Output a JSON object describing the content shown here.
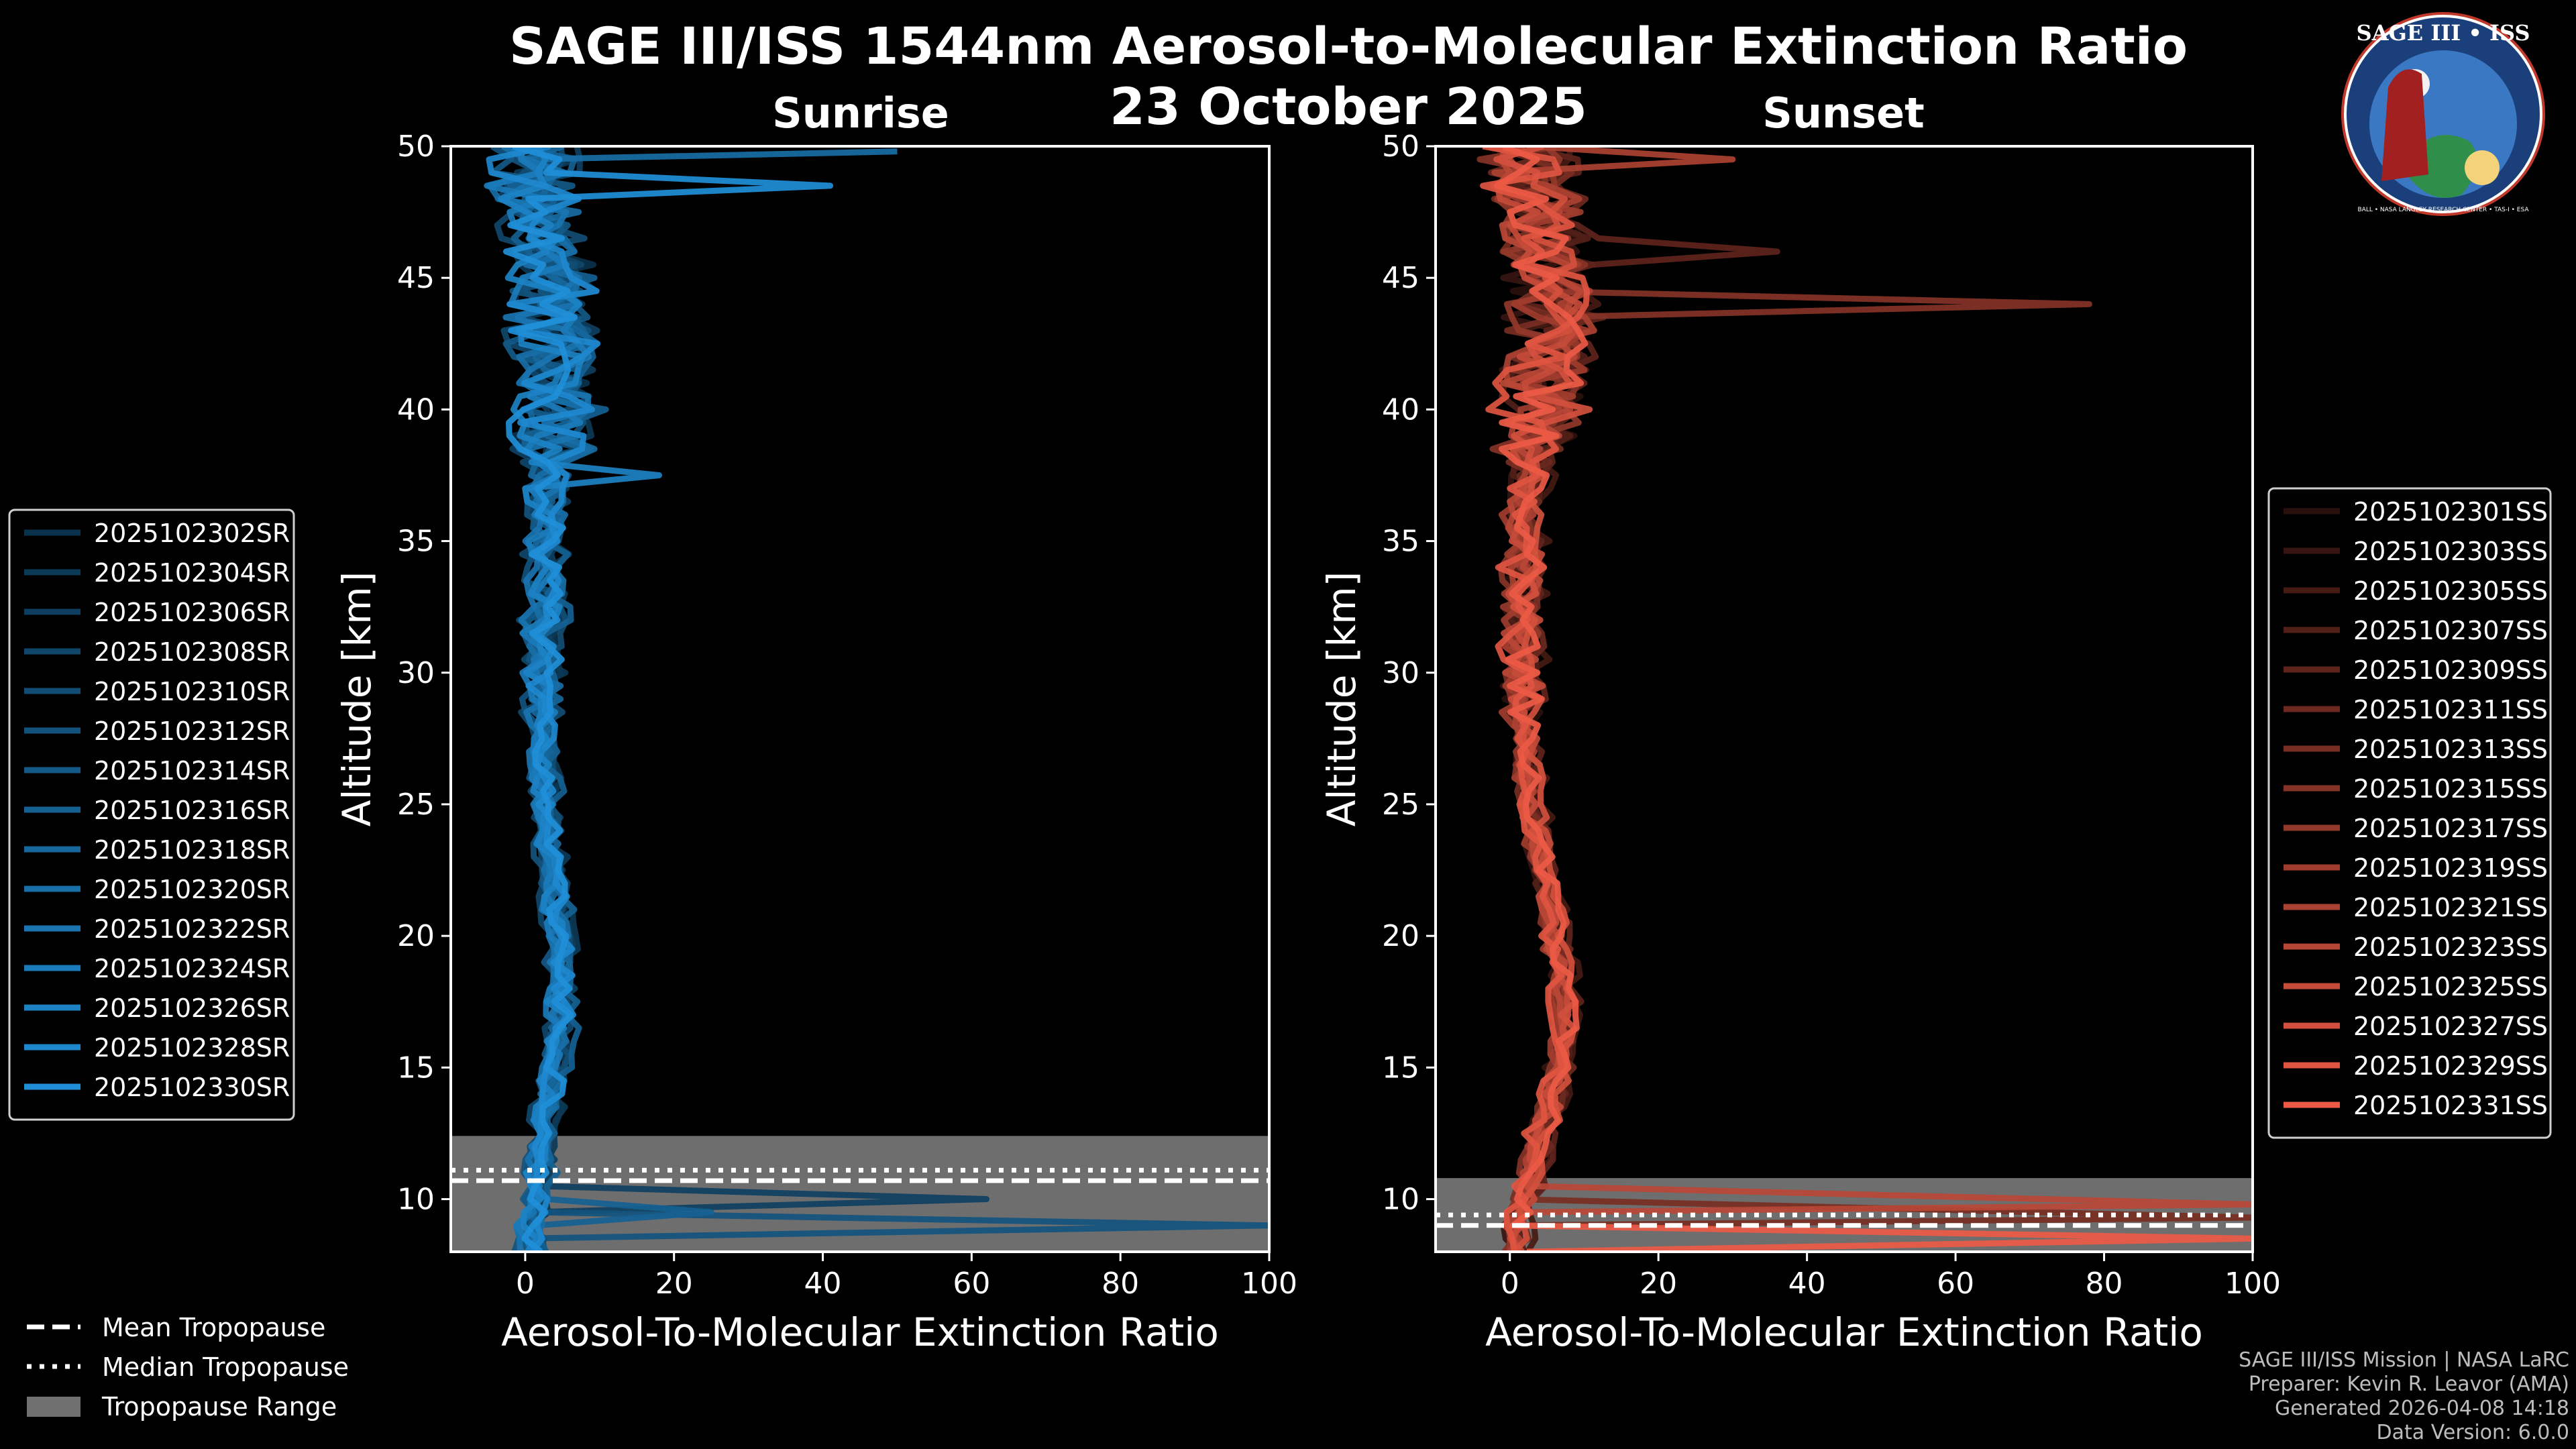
{
  "title_line1": "SAGE III/ISS 1544nm Aerosol-to-Molecular Extinction Ratio",
  "title_line2": "23 October 2025",
  "badge": {
    "title": "SAGE III • ISS",
    "ring_text": "BALL • NASA LANGLEY RESEARCH CENTER • TAS-I • ESA"
  },
  "credits": [
    "SAGE III/ISS Mission | NASA LaRC",
    "Preparer: Kevin R. Leavor (AMA)",
    "Generated 2026-04-08 14:18",
    "Data Version: 6.0.0"
  ],
  "tropo_legend": {
    "mean": "Mean Tropopause",
    "median": "Median Tropopause",
    "range": "Tropopause Range"
  },
  "chart_data": [
    {
      "type": "line",
      "panel": "sunrise",
      "subtitle": "Sunrise",
      "xlabel": "Aerosol-To-Molecular Extinction Ratio",
      "ylabel": "Altitude [km]",
      "xlim": [
        -10,
        100
      ],
      "ylim": [
        8,
        50
      ],
      "xticks": [
        0,
        20,
        40,
        60,
        80,
        100
      ],
      "yticks": [
        10,
        15,
        20,
        25,
        30,
        35,
        40,
        45,
        50
      ],
      "base_color": "#1f8fd8",
      "tropopause": {
        "mean": 10.7,
        "median": 11.1,
        "range": [
          8.0,
          12.4
        ]
      },
      "profile_shape": {
        "altitudes": [
          8,
          9,
          10,
          11,
          12,
          13,
          15,
          17,
          19,
          21,
          23,
          25,
          27,
          29,
          31,
          33,
          35,
          37,
          39,
          41,
          43,
          45,
          47,
          49,
          50
        ],
        "ratio": [
          1,
          1,
          1.5,
          2,
          2.5,
          3,
          4,
          5,
          5,
          4.5,
          3.5,
          3,
          2.5,
          2.5,
          2.5,
          3,
          3,
          3,
          3.5,
          4,
          4,
          3.5,
          2,
          1,
          1
        ]
      },
      "spikes": [
        {
          "series": "2025102312SR",
          "alt": 9.0,
          "x": 100
        },
        {
          "series": "2025102306SR",
          "alt": 10.0,
          "x": 62
        },
        {
          "series": "2025102316SR",
          "alt": 9.5,
          "x": 25
        },
        {
          "series": "2025102326SR",
          "alt": 37.5,
          "x": 18
        },
        {
          "series": "2025102330SR",
          "alt": 48.5,
          "x": 41
        },
        {
          "series": "2025102320SR",
          "alt": 49.8,
          "x": 50
        }
      ],
      "legend": [
        "2025102302SR",
        "2025102304SR",
        "2025102306SR",
        "2025102308SR",
        "2025102310SR",
        "2025102312SR",
        "2025102314SR",
        "2025102316SR",
        "2025102318SR",
        "2025102320SR",
        "2025102322SR",
        "2025102324SR",
        "2025102326SR",
        "2025102328SR",
        "2025102330SR"
      ]
    },
    {
      "type": "line",
      "panel": "sunset",
      "subtitle": "Sunset",
      "xlabel": "Aerosol-To-Molecular Extinction Ratio",
      "ylabel": "Altitude [km]",
      "xlim": [
        -10,
        100
      ],
      "ylim": [
        8,
        50
      ],
      "xticks": [
        0,
        20,
        40,
        60,
        80,
        100
      ],
      "yticks": [
        10,
        15,
        20,
        25,
        30,
        35,
        40,
        45,
        50
      ],
      "base_color": "#ec5a45",
      "tropopause": {
        "mean": 9.0,
        "median": 9.4,
        "range": [
          8.0,
          10.8
        ]
      },
      "profile_shape": {
        "altitudes": [
          8,
          9,
          10,
          11,
          12,
          13,
          15,
          17,
          19,
          21,
          23,
          25,
          27,
          29,
          31,
          33,
          35,
          37,
          39,
          41,
          43,
          45,
          47,
          49,
          50
        ],
        "ratio": [
          1,
          1,
          2,
          3,
          4,
          5,
          7,
          7.5,
          7,
          5.5,
          4.5,
          3,
          2.5,
          2,
          2,
          2,
          2,
          2.5,
          3.5,
          5,
          6,
          6,
          5,
          3,
          2
        ]
      },
      "spikes": [
        {
          "series": "2025102315SS",
          "alt": 44.0,
          "x": 78
        },
        {
          "series": "2025102309SS",
          "alt": 46.0,
          "x": 36
        },
        {
          "series": "2025102321SS",
          "alt": 49.5,
          "x": 30
        },
        {
          "series": "2025102313SS",
          "alt": 9.3,
          "x": 100
        },
        {
          "series": "2025102331SS",
          "alt": 8.5,
          "x": 100
        },
        {
          "series": "2025102323SS",
          "alt": 9.8,
          "x": 100
        }
      ],
      "legend": [
        "2025102301SS",
        "2025102303SS",
        "2025102305SS",
        "2025102307SS",
        "2025102309SS",
        "2025102311SS",
        "2025102313SS",
        "2025102315SS",
        "2025102317SS",
        "2025102319SS",
        "2025102321SS",
        "2025102323SS",
        "2025102325SS",
        "2025102327SS",
        "2025102329SS",
        "2025102331SS"
      ]
    }
  ]
}
